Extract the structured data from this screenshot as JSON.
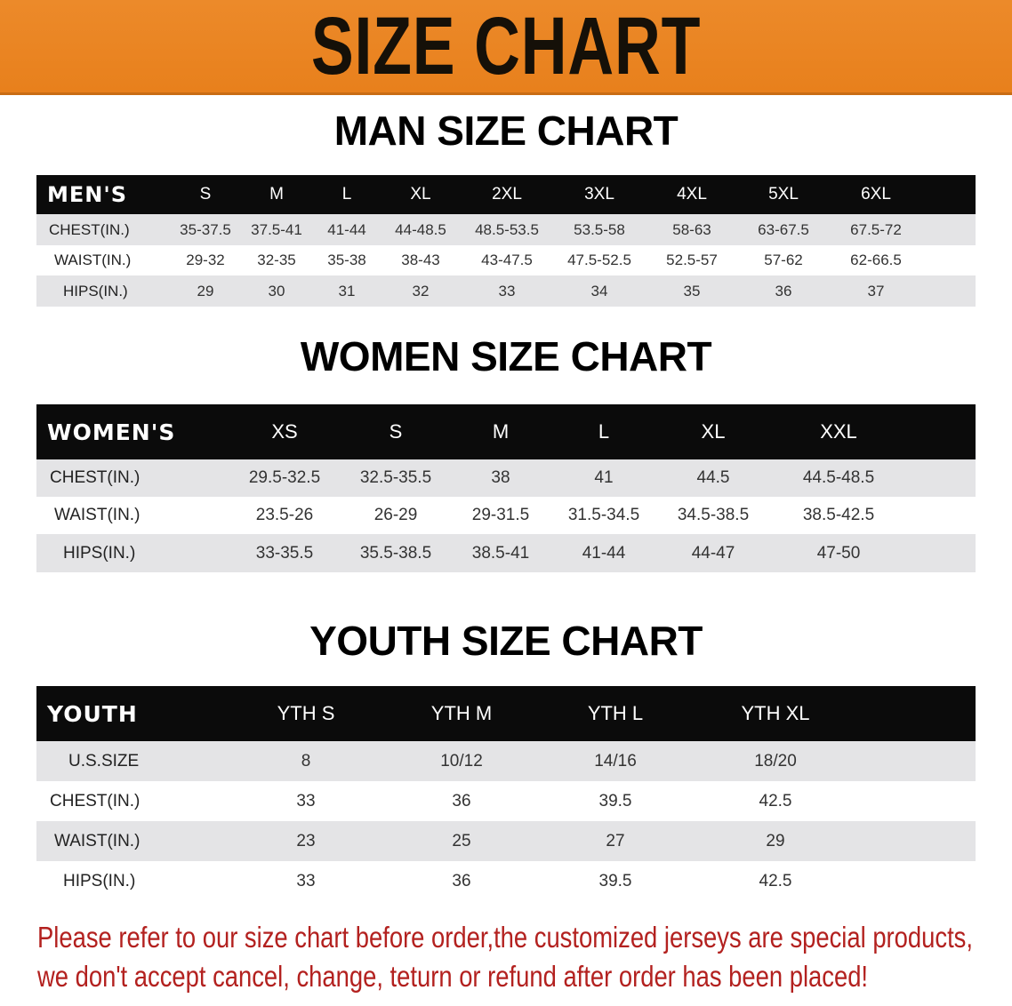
{
  "banner": {
    "title": "SIZE CHART",
    "color": "#e8801c"
  },
  "men": {
    "title": "MAN SIZE CHART",
    "header_label": "MEN'S",
    "sizes": [
      "S",
      "M",
      "L",
      "XL",
      "2XL",
      "3XL",
      "4XL",
      "5XL",
      "6XL"
    ],
    "rows": [
      {
        "label": "CHEST(IN.)",
        "values": [
          "35-37.5",
          "37.5-41",
          "41-44",
          "44-48.5",
          "48.5-53.5",
          "53.5-58",
          "58-63",
          "63-67.5",
          "67.5-72"
        ]
      },
      {
        "label": "WAIST(IN.)",
        "values": [
          "29-32",
          "32-35",
          "35-38",
          "38-43",
          "43-47.5",
          "47.5-52.5",
          "52.5-57",
          "57-62",
          "62-66.5"
        ]
      },
      {
        "label": "HIPS(IN.)",
        "values": [
          "29",
          "30",
          "31",
          "32",
          "33",
          "34",
          "35",
          "36",
          "37"
        ]
      }
    ]
  },
  "women": {
    "title": "WOMEN SIZE CHART",
    "header_label": "WOMEN'S",
    "sizes": [
      "XS",
      "S",
      "M",
      "L",
      "XL",
      "XXL"
    ],
    "rows": [
      {
        "label": "CHEST(IN.)",
        "values": [
          "29.5-32.5",
          "32.5-35.5",
          "38",
          "41",
          "44.5",
          "44.5-48.5"
        ]
      },
      {
        "label": "WAIST(IN.)",
        "values": [
          "23.5-26",
          "26-29",
          "29-31.5",
          "31.5-34.5",
          "34.5-38.5",
          "38.5-42.5"
        ]
      },
      {
        "label": "HIPS(IN.)",
        "values": [
          "33-35.5",
          "35.5-38.5",
          "38.5-41",
          "41-44",
          "44-47",
          "47-50"
        ]
      }
    ]
  },
  "youth": {
    "title": "YOUTH SIZE CHART",
    "header_label": "YOUTH",
    "sizes": [
      "YTH S",
      "YTH M",
      "YTH L",
      "YTH XL"
    ],
    "rows": [
      {
        "label": "U.S.SIZE",
        "values": [
          "8",
          "10/12",
          "14/16",
          "18/20"
        ]
      },
      {
        "label": "CHEST(IN.)",
        "values": [
          "33",
          "36",
          "39.5",
          "42.5"
        ]
      },
      {
        "label": "WAIST(IN.)",
        "values": [
          "23",
          "25",
          "27",
          "29"
        ]
      },
      {
        "label": "HIPS(IN.)",
        "values": [
          "33",
          "36",
          "39.5",
          "42.5"
        ]
      }
    ]
  },
  "notice": {
    "line1": "Please refer to our size chart before order,the customized jerseys are special products,",
    "line2": "we don't accept cancel, change, teturn or refund after order has been placed!",
    "color": "#b3211f"
  }
}
